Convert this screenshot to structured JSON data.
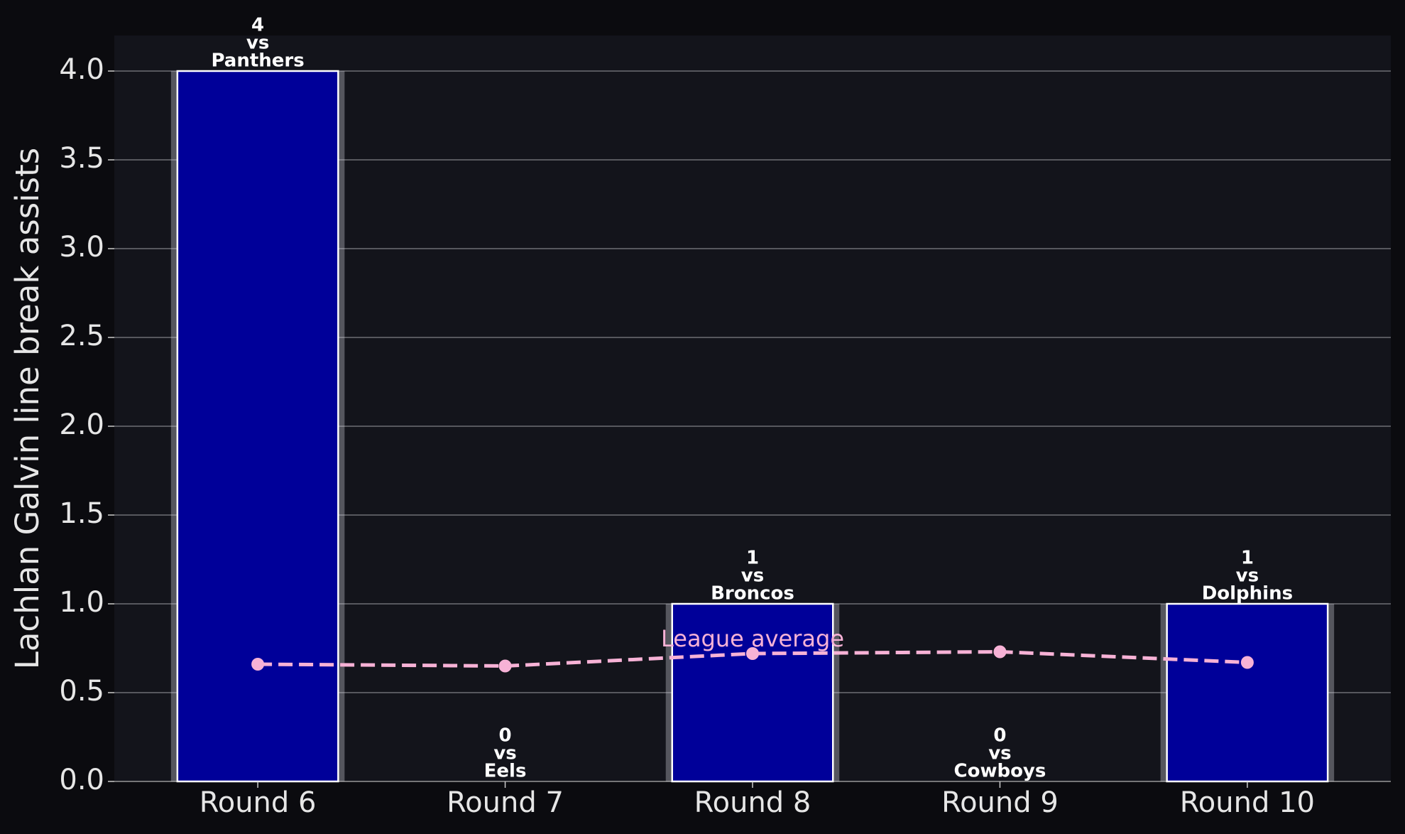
{
  "chart_data": {
    "type": "bar",
    "y_label": "Lachlan Galvin line break assists",
    "categories": [
      "Round 6",
      "Round 7",
      "Round 8",
      "Round 9",
      "Round 10"
    ],
    "values": [
      4,
      0,
      1,
      0,
      1
    ],
    "labels": [
      [
        "vs",
        "Panthers"
      ],
      [
        "vs",
        "Eels"
      ],
      [
        "vs",
        "Broncos"
      ],
      [
        "vs",
        "Cowboys"
      ],
      [
        "vs",
        "Dolphins"
      ]
    ],
    "color": "#000099",
    "series": [
      {
        "name": "League average",
        "color": "#f7b2d6",
        "values": [
          0.66,
          0.65,
          0.72,
          0.73,
          0.67
        ]
      }
    ],
    "ylim": [
      0,
      4.2
    ],
    "yticks": [
      {
        "value": 0,
        "label": "0.0"
      },
      0.5,
      {
        "value": 1,
        "label": "1.0"
      },
      1.5,
      {
        "value": 2,
        "label": "2.0"
      },
      2.5,
      {
        "value": 3,
        "label": "3.0"
      },
      3.5,
      {
        "value": 4,
        "label": "4.0"
      }
    ],
    "grid": true
  }
}
